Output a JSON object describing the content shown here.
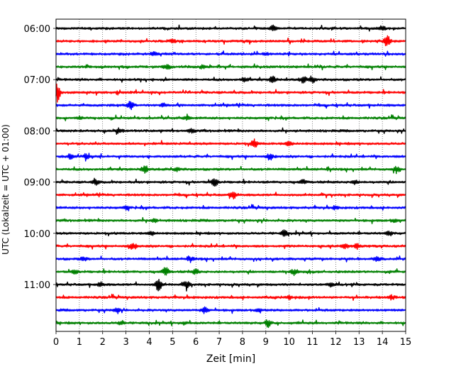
{
  "chart_data": {
    "type": "line",
    "subtype": "helicorder-seismogram",
    "xlabel": "Zeit  [min]",
    "ylabel": "UTC (Lokalzeit = UTC + 01:00)",
    "xlim": [
      0,
      15
    ],
    "x_ticks": [
      "0",
      "1",
      "2",
      "3",
      "4",
      "5",
      "6",
      "7",
      "8",
      "9",
      "10",
      "11",
      "12",
      "13",
      "14",
      "15"
    ],
    "y_tick_labels": [
      "06:00",
      "07:00",
      "08:00",
      "09:00",
      "10:00",
      "11:00"
    ],
    "grid": "vertical dotted at each minute",
    "trace_interval_minutes": 15,
    "trace_colors_cycle": [
      "#000000",
      "#ff0000",
      "#0000ff",
      "#008000"
    ],
    "rows": [
      {
        "start": "06:00",
        "color": "#000000",
        "events": [
          [
            9.3,
            1.2
          ],
          [
            14.0,
            1.0
          ]
        ]
      },
      {
        "start": "06:15",
        "color": "#ff0000",
        "events": [
          [
            14.2,
            2.4
          ],
          [
            5.0,
            0.6
          ]
        ]
      },
      {
        "start": "06:30",
        "color": "#0000ff",
        "events": [
          [
            4.2,
            0.7
          ],
          [
            9.0,
            0.6
          ]
        ]
      },
      {
        "start": "06:45",
        "color": "#008000",
        "events": [
          [
            4.8,
            0.9
          ],
          [
            6.3,
            0.8
          ]
        ]
      },
      {
        "start": "07:00",
        "color": "#000000",
        "events": [
          [
            9.3,
            1.6
          ],
          [
            10.6,
            1.3
          ],
          [
            11.0,
            1.1
          ],
          [
            8.1,
            0.8
          ]
        ]
      },
      {
        "start": "07:15",
        "color": "#ff0000",
        "events": [
          [
            0.05,
            4.0
          ]
        ]
      },
      {
        "start": "07:30",
        "color": "#0000ff",
        "events": [
          [
            3.2,
            1.8
          ],
          [
            4.6,
            0.8
          ]
        ]
      },
      {
        "start": "07:45",
        "color": "#008000",
        "events": [
          [
            5.6,
            0.7
          ],
          [
            1.0,
            0.5
          ]
        ]
      },
      {
        "start": "08:00",
        "color": "#000000",
        "events": [
          [
            2.7,
            1.0
          ],
          [
            5.8,
            0.8
          ]
        ]
      },
      {
        "start": "08:15",
        "color": "#ff0000",
        "events": [
          [
            8.5,
            1.6
          ],
          [
            10.0,
            0.9
          ]
        ]
      },
      {
        "start": "08:30",
        "color": "#0000ff",
        "events": [
          [
            0.6,
            1.0
          ],
          [
            1.3,
            0.9
          ],
          [
            9.2,
            1.3
          ]
        ]
      },
      {
        "start": "08:45",
        "color": "#008000",
        "events": [
          [
            3.8,
            1.6
          ],
          [
            14.6,
            1.4
          ],
          [
            5.2,
            0.7
          ]
        ]
      },
      {
        "start": "09:00",
        "color": "#000000",
        "events": [
          [
            1.7,
            1.2
          ],
          [
            6.8,
            1.8
          ],
          [
            10.6,
            0.9
          ],
          [
            12.8,
            0.9
          ]
        ]
      },
      {
        "start": "09:15",
        "color": "#ff0000",
        "events": [
          [
            7.6,
            1.5
          ]
        ]
      },
      {
        "start": "09:30",
        "color": "#0000ff",
        "events": [
          [
            3.0,
            0.6
          ],
          [
            12.0,
            0.6
          ]
        ]
      },
      {
        "start": "09:45",
        "color": "#008000",
        "events": [
          [
            4.2,
            0.6
          ],
          [
            14.5,
            0.6
          ]
        ]
      },
      {
        "start": "10:00",
        "color": "#000000",
        "events": [
          [
            9.8,
            1.3
          ],
          [
            4.1,
            0.8
          ],
          [
            14.3,
            0.8
          ]
        ]
      },
      {
        "start": "10:15",
        "color": "#ff0000",
        "events": [
          [
            3.3,
            1.4
          ],
          [
            12.4,
            1.1
          ],
          [
            12.9,
            1.0
          ]
        ]
      },
      {
        "start": "10:30",
        "color": "#0000ff",
        "events": [
          [
            1.2,
            0.8
          ],
          [
            13.8,
            0.9
          ],
          [
            5.8,
            0.6
          ]
        ]
      },
      {
        "start": "10:45",
        "color": "#008000",
        "events": [
          [
            4.7,
            1.9
          ],
          [
            6.0,
            1.0
          ],
          [
            10.2,
            0.9
          ],
          [
            0.8,
            0.8
          ]
        ]
      },
      {
        "start": "11:00",
        "color": "#000000",
        "events": [
          [
            4.4,
            2.6
          ],
          [
            5.6,
            1.6
          ],
          [
            1.9,
            0.9
          ],
          [
            11.8,
            0.8
          ]
        ]
      },
      {
        "start": "11:15",
        "color": "#ff0000",
        "events": [
          [
            14.4,
            0.8
          ],
          [
            10.0,
            0.7
          ]
        ]
      },
      {
        "start": "11:30",
        "color": "#0000ff",
        "events": [
          [
            2.6,
            1.0
          ],
          [
            6.4,
            1.4
          ],
          [
            8.7,
            0.6
          ]
        ]
      },
      {
        "start": "11:45",
        "color": "#008000",
        "events": [
          [
            2.8,
            0.8
          ],
          [
            9.1,
            1.5
          ],
          [
            5.5,
            0.6
          ]
        ]
      }
    ]
  }
}
